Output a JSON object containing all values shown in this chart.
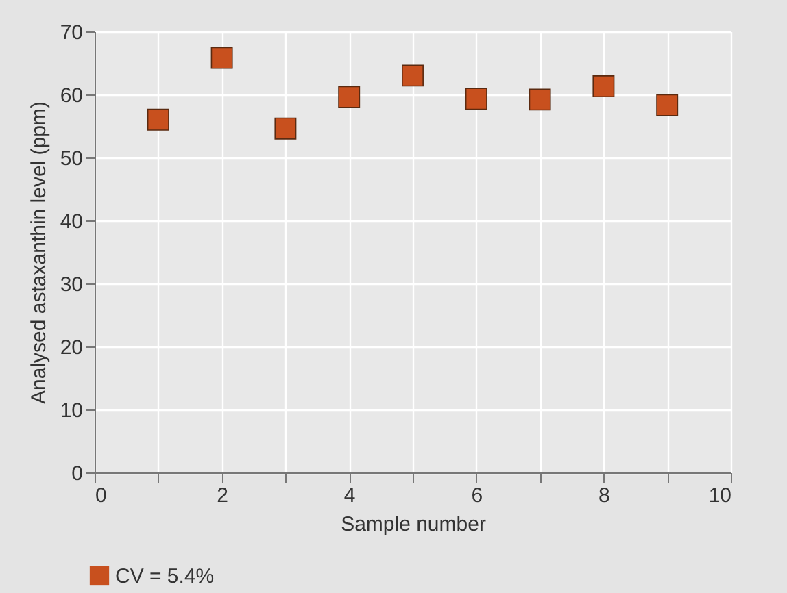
{
  "chart_data": {
    "type": "scatter",
    "xlabel": "Sample number",
    "ylabel": "Analysed astaxanthin level (ppm)",
    "x": [
      1,
      2,
      3,
      4,
      5,
      6,
      7,
      8,
      9
    ],
    "series": [
      {
        "name": "CV = 5.4%",
        "color": "#c8501e",
        "values": [
          56.0,
          65.8,
          54.6,
          59.6,
          63.0,
          59.3,
          59.2,
          61.3,
          58.3
        ]
      }
    ],
    "xlim": [
      0,
      10
    ],
    "xticks": [
      0,
      {
        "value": 1,
        "label": null
      },
      2,
      {
        "value": 3,
        "label": null
      },
      4,
      {
        "value": 5,
        "label": null
      },
      6,
      {
        "value": 7,
        "label": null
      },
      8,
      {
        "value": 9,
        "label": null
      },
      10
    ],
    "ylim": [
      0,
      70
    ],
    "yticks": [
      0,
      10,
      20,
      30,
      40,
      50,
      60,
      70
    ],
    "grid": true,
    "legend": "bottom left",
    "marker": "square"
  }
}
